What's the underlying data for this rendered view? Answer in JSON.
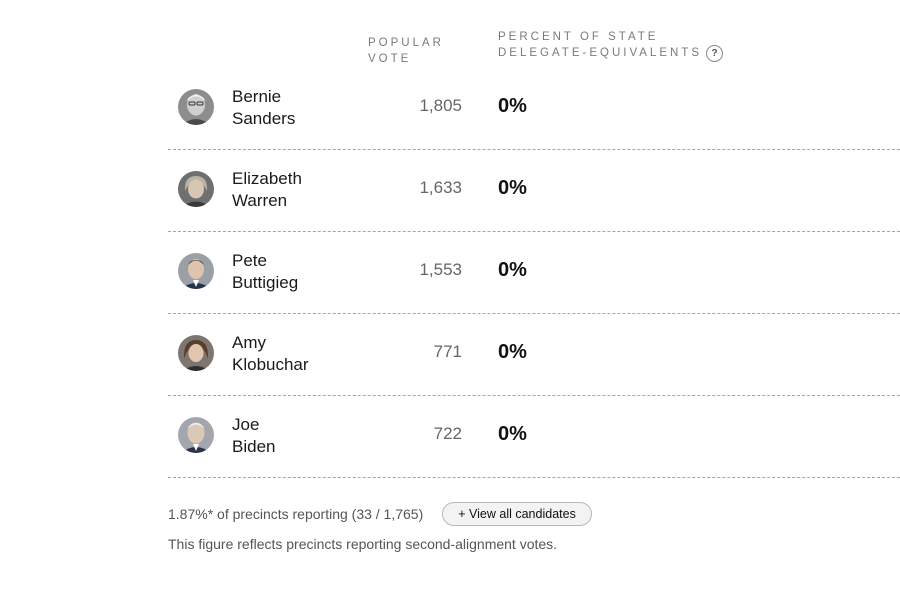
{
  "header": {
    "popular_vote_line1": "POPULAR",
    "popular_vote_line2": "VOTE",
    "percent_line1": "PERCENT OF STATE",
    "percent_line2": "DELEGATE-EQUIVALENTS",
    "help_glyph": "?"
  },
  "candidates": [
    {
      "first": "Bernie",
      "last": "Sanders",
      "votes": "1,805",
      "percent": "0%",
      "icon": "bernie-sanders-avatar"
    },
    {
      "first": "Elizabeth",
      "last": "Warren",
      "votes": "1,633",
      "percent": "0%",
      "icon": "elizabeth-warren-avatar"
    },
    {
      "first": "Pete",
      "last": "Buttigieg",
      "votes": "1,553",
      "percent": "0%",
      "icon": "pete-buttigieg-avatar"
    },
    {
      "first": "Amy",
      "last": "Klobuchar",
      "votes": "771",
      "percent": "0%",
      "icon": "amy-klobuchar-avatar"
    },
    {
      "first": "Joe",
      "last": "Biden",
      "votes": "722",
      "percent": "0%",
      "icon": "joe-biden-avatar"
    }
  ],
  "footer": {
    "reporting": "1.87%* of precincts reporting (33 / 1,765)",
    "view_all_label": "+ View all candidates",
    "note": "This figure reflects precincts reporting second-alignment votes."
  }
}
